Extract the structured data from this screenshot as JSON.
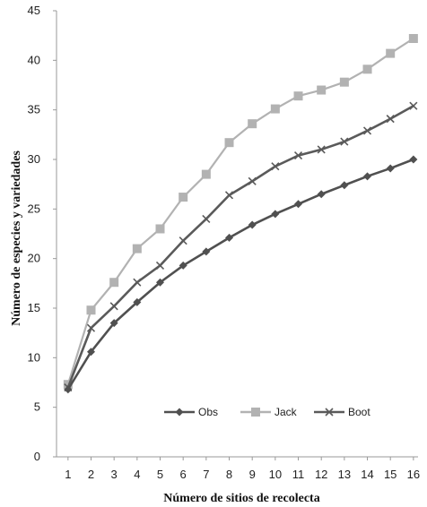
{
  "chart_data": {
    "type": "line",
    "title": "",
    "xlabel": "Número de sitios de recolecta",
    "ylabel": "Número de especies y variedades",
    "x": [
      1,
      2,
      3,
      4,
      5,
      6,
      7,
      8,
      9,
      10,
      11,
      12,
      13,
      14,
      15,
      16
    ],
    "xlim": [
      0.5,
      16.2
    ],
    "ylim": [
      0,
      45
    ],
    "yticks": [
      0,
      5,
      10,
      15,
      20,
      25,
      30,
      35,
      40,
      45
    ],
    "grid": false,
    "legend_position": "bottom-right",
    "series": [
      {
        "name": "Obs",
        "color": "#505050",
        "marker": "diamond",
        "values": [
          6.8,
          10.6,
          13.5,
          15.6,
          17.6,
          19.3,
          20.7,
          22.1,
          23.4,
          24.5,
          25.5,
          26.5,
          27.4,
          28.3,
          29.1,
          30.0
        ]
      },
      {
        "name": "Jack",
        "color": "#b2b2b2",
        "marker": "square",
        "values": [
          7.3,
          14.8,
          17.6,
          21.0,
          23.0,
          26.2,
          28.5,
          31.7,
          33.6,
          35.1,
          36.4,
          37.0,
          37.8,
          39.1,
          40.7,
          42.2
        ]
      },
      {
        "name": "Boot",
        "color": "#5a5a5a",
        "marker": "cross",
        "values": [
          7.0,
          13.0,
          15.2,
          17.6,
          19.3,
          21.8,
          24.0,
          26.4,
          27.8,
          29.3,
          30.4,
          31.0,
          31.8,
          32.9,
          34.1,
          35.4
        ]
      }
    ]
  }
}
